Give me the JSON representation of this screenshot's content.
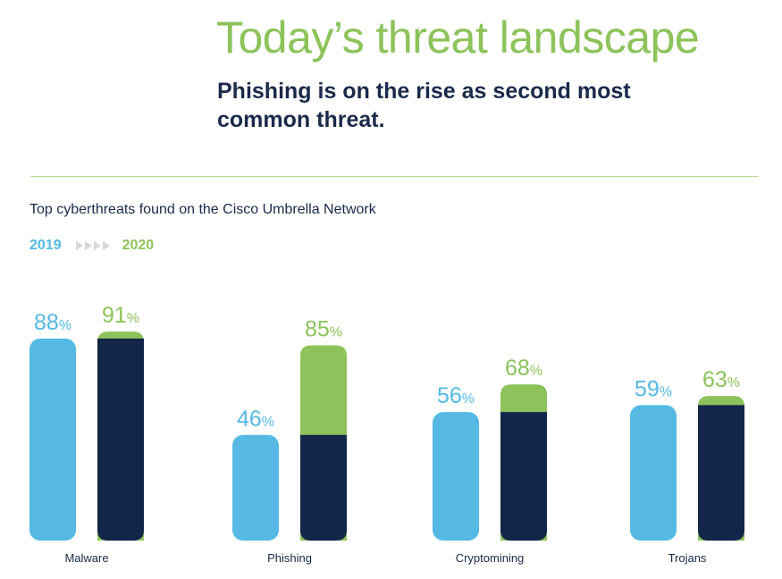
{
  "page": {
    "title": "Today’s threat landscape",
    "subtitle": "Phishing is on the rise as second most common threat."
  },
  "colors": {
    "y2019": "#55b9e4",
    "y2020_navy": "#13264a",
    "y2020_increase": "#8dc35a",
    "label_text": "#1b2a4a"
  },
  "chart_data": {
    "type": "bar",
    "title": "Top cyberthreats found on the Cisco Umbrella Network",
    "legend": {
      "from_label": "2019",
      "to_label": "2020",
      "placement": "top-left"
    },
    "categories": [
      "Malware",
      "Phishing",
      "Cryptomining",
      "Trojans"
    ],
    "series": [
      {
        "name": "2019",
        "values": [
          88,
          46,
          56,
          59
        ]
      },
      {
        "name": "2020",
        "values": [
          91,
          85,
          68,
          63
        ]
      }
    ],
    "value_suffix": "%",
    "ylim": [
      0,
      100
    ],
    "grid": false
  }
}
